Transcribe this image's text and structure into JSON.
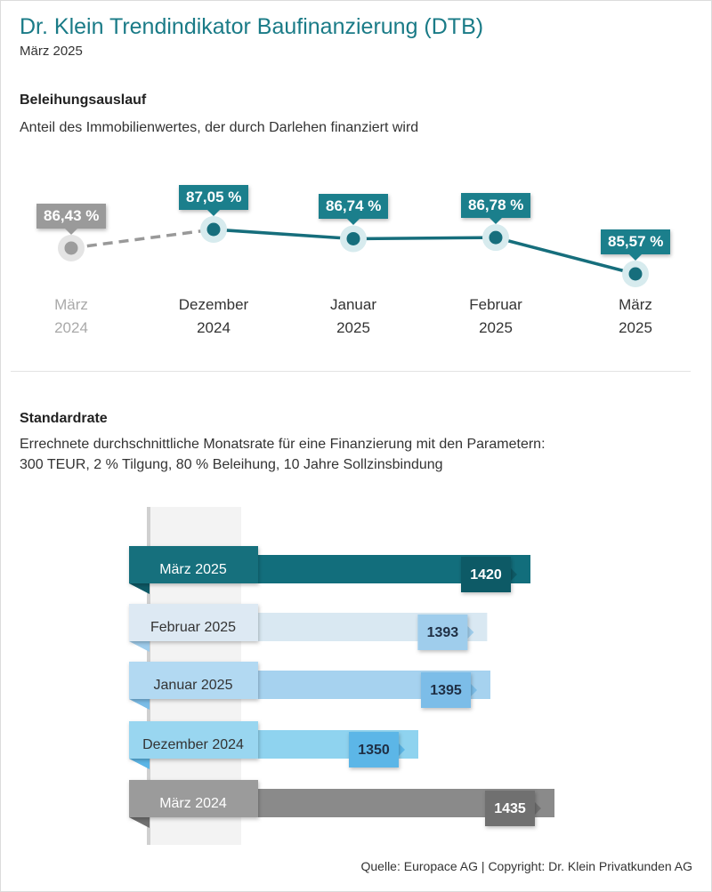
{
  "header": {
    "title": "Dr. Klein Trendindikator Baufinanzierung (DTB)",
    "subtitle": "März 2025"
  },
  "section1": {
    "heading": "Beleihungsauslauf",
    "description": "Anteil des Immobilienwertes, der durch Darlehen finanziert wird"
  },
  "section2": {
    "heading": "Standardrate",
    "description_line1": "Errechnete durchschnittliche Monatsrate für eine Finanzierung mit den Parametern:",
    "description_line2": "300 TEUR, 2 % Tilgung, 80 % Beleihung, 10 Jahre Sollzinsbindung"
  },
  "source": "Quelle: Europace AG | Copyright: Dr. Klein Privatkunden AG",
  "chart_data": [
    {
      "type": "line",
      "title": "Beleihungsauslauf",
      "unit": "%",
      "x": [
        "März 2024",
        "Dezember 2024",
        "Januar 2025",
        "Februar 2025",
        "März 2025"
      ],
      "x_lines": [
        [
          "März",
          "2024"
        ],
        [
          "Dezember",
          "2024"
        ],
        [
          "Januar",
          "2025"
        ],
        [
          "Februar",
          "2025"
        ],
        [
          "März",
          "2025"
        ]
      ],
      "values": [
        86.43,
        87.05,
        86.74,
        86.78,
        85.57
      ],
      "labels": [
        "86,43 %",
        "87,05 %",
        "86,74 %",
        "86,78 %",
        "85,57 %"
      ],
      "colors": {
        "line": "#166e7c",
        "reference": "#999999",
        "label": "#1b7f8c",
        "reference_label": "#9a9a9a"
      }
    },
    {
      "type": "bar",
      "orientation": "horizontal",
      "title": "Standardrate",
      "unit": "EUR",
      "categories": [
        "März 2025",
        "Februar 2025",
        "Januar 2025",
        "Dezember 2024",
        "März 2024"
      ],
      "values": [
        1420,
        1393,
        1395,
        1350,
        1435
      ],
      "value_labels": [
        "1420",
        "1393",
        "1395",
        "1350",
        "1435"
      ],
      "colors": [
        {
          "bar": "#126e7c",
          "label": "#16707d",
          "label_text": "#ffffff",
          "badge": "#0e5a66",
          "badge_text": "#ffffff"
        },
        {
          "bar": "#d9e8f2",
          "label": "#dde9f3",
          "label_text": "#333333",
          "badge": "#9fcdec",
          "badge_text": "#1f2f44"
        },
        {
          "bar": "#a6d2ef",
          "label": "#b2d9f2",
          "label_text": "#333333",
          "badge": "#7bbde8",
          "badge_text": "#1f2f44"
        },
        {
          "bar": "#8fd3ef",
          "label": "#99d6f0",
          "label_text": "#333333",
          "badge": "#5bb6e7",
          "badge_text": "#1f2f44"
        },
        {
          "bar": "#8a8a8a",
          "label": "#9b9b9b",
          "label_text": "#ffffff",
          "badge": "#707070",
          "badge_text": "#ffffff"
        }
      ]
    }
  ]
}
